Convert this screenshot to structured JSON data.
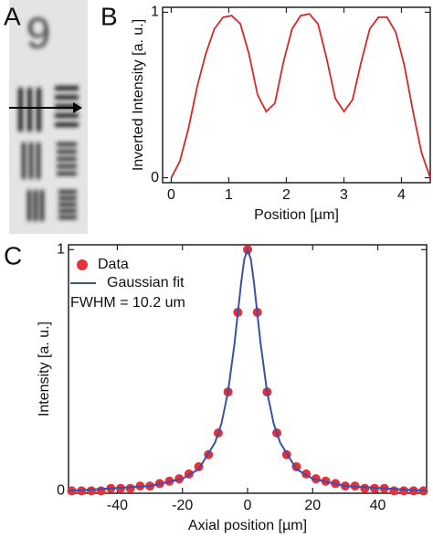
{
  "image_panel": {
    "label": "A",
    "image_text": "9"
  },
  "chart_data": [
    {
      "type": "line",
      "panel": "B",
      "xlabel": "Position [µm]",
      "ylabel": "Inverted Intensity [a. u.]",
      "color": "#d62728",
      "x": [
        0,
        0.15,
        0.3,
        0.45,
        0.6,
        0.75,
        0.9,
        1.05,
        1.2,
        1.35,
        1.5,
        1.65,
        1.8,
        1.95,
        2.1,
        2.25,
        2.4,
        2.55,
        2.7,
        2.85,
        3.0,
        3.15,
        3.3,
        3.45,
        3.6,
        3.75,
        3.9,
        4.05,
        4.2,
        4.35,
        4.5
      ],
      "values": [
        0.0,
        0.1,
        0.3,
        0.55,
        0.75,
        0.9,
        0.97,
        0.98,
        0.93,
        0.75,
        0.5,
        0.4,
        0.45,
        0.7,
        0.9,
        0.98,
        0.99,
        0.93,
        0.72,
        0.48,
        0.4,
        0.47,
        0.7,
        0.9,
        0.97,
        0.97,
        0.88,
        0.68,
        0.4,
        0.15,
        0.0
      ],
      "xlim": [
        -0.15,
        4.5
      ],
      "xticks": [
        0,
        1,
        2,
        3,
        4
      ],
      "ylim": [
        -0.03,
        1.03
      ],
      "yticks": [
        0,
        1
      ]
    },
    {
      "type": "scatter",
      "panel": "C",
      "xlabel": "Axial position [µm]",
      "ylabel": "Intensity [a. u.]",
      "annotation": "FWHM = 10.2 um",
      "xlim": [
        -55,
        55
      ],
      "xticks": [
        -40,
        -20,
        0,
        20,
        40
      ],
      "ylim": [
        -0.01,
        1.02
      ],
      "yticks": [
        0,
        1
      ],
      "series": [
        {
          "name": "Data",
          "color": "#e8303a",
          "marker": "circle",
          "x": [
            -54,
            -51,
            -48,
            -45,
            -42,
            -39,
            -36,
            -33,
            -30,
            -27,
            -24,
            -21,
            -18,
            -15,
            -12,
            -9,
            -6,
            -3,
            0,
            3,
            6,
            9,
            12,
            15,
            18,
            21,
            24,
            27,
            30,
            33,
            36,
            39,
            42,
            45,
            48,
            51,
            54
          ],
          "values": [
            0,
            0,
            0,
            0,
            0.01,
            0.01,
            0.01,
            0.02,
            0.02,
            0.03,
            0.04,
            0.05,
            0.07,
            0.1,
            0.15,
            0.24,
            0.41,
            0.74,
            1,
            0.74,
            0.41,
            0.24,
            0.15,
            0.1,
            0.07,
            0.05,
            0.04,
            0.03,
            0.02,
            0.02,
            0.01,
            0.01,
            0.01,
            0,
            0,
            0,
            0
          ]
        },
        {
          "name": "Gaussian fit",
          "color": "#3b4fa8",
          "marker": "line",
          "x": [
            -55,
            -30,
            -20,
            -15,
            -10,
            -8,
            -6,
            -4,
            -2,
            -1,
            0,
            1,
            2,
            4,
            6,
            8,
            10,
            15,
            20,
            30,
            55
          ],
          "values": [
            0,
            0.02,
            0.05,
            0.09,
            0.2,
            0.28,
            0.41,
            0.61,
            0.86,
            0.96,
            1,
            0.96,
            0.86,
            0.61,
            0.41,
            0.28,
            0.2,
            0.09,
            0.05,
            0.02,
            0
          ]
        }
      ]
    }
  ]
}
